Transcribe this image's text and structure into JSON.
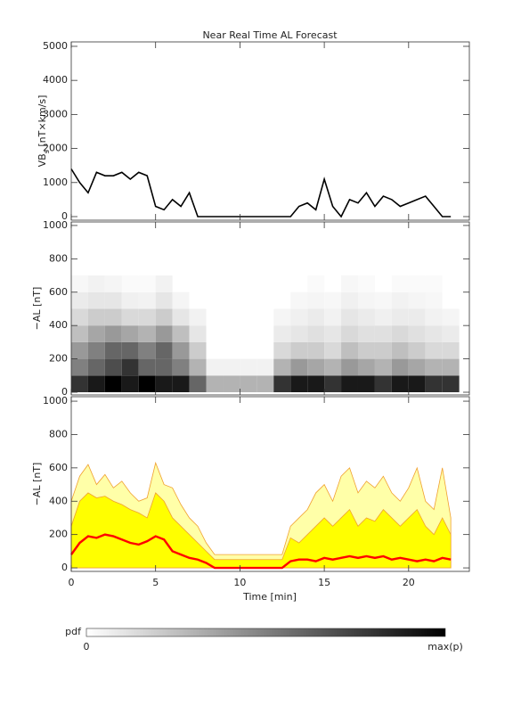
{
  "chart_data": [
    {
      "type": "line",
      "title": "Near Real Time AL Forecast",
      "ylabel": [
        "VB",
        "s",
        " [nT×km/s]"
      ],
      "xlim": [
        0,
        23.6
      ],
      "ylim": [
        -105,
        5130
      ],
      "yticks": [
        0,
        1000,
        2000,
        3000,
        4000,
        5000
      ],
      "x": [
        0,
        0.5,
        1,
        1.5,
        2,
        2.5,
        3,
        3.5,
        4,
        4.5,
        5,
        5.5,
        6,
        6.5,
        7,
        7.5,
        8,
        8.5,
        9,
        9.5,
        10,
        10.5,
        11,
        11.5,
        12,
        12.5,
        13,
        13.5,
        14,
        14.5,
        15,
        15.5,
        16,
        16.5,
        17,
        17.5,
        18,
        18.5,
        19,
        19.5,
        20,
        20.5,
        21,
        21.5,
        22,
        22.5
      ],
      "series": [
        {
          "color": "#000000",
          "values": [
            1400,
            1000,
            700,
            1300,
            1200,
            1200,
            1300,
            1100,
            1300,
            1200,
            300,
            200,
            500,
            300,
            700,
            0,
            0,
            0,
            0,
            0,
            0,
            0,
            0,
            0,
            0,
            0,
            0,
            300,
            400,
            200,
            1100,
            300,
            0,
            500,
            400,
            700,
            300,
            600,
            500,
            300,
            400,
            500,
            600,
            300,
            0,
            0
          ]
        }
      ]
    },
    {
      "type": "heatmap",
      "ylabel": "−AL [nT]",
      "xlim": [
        0,
        23.6
      ],
      "ylim": [
        -16,
        1021
      ],
      "yticks": [
        0,
        200,
        400,
        600,
        800,
        1000
      ],
      "x_bins": [
        0,
        1,
        2,
        3,
        4,
        5,
        6,
        7,
        8,
        9,
        10,
        11,
        12,
        13,
        14,
        15,
        16,
        17,
        18,
        19,
        20,
        21,
        22,
        23
      ],
      "y_bins": [
        0,
        100,
        200,
        300,
        400,
        500,
        600,
        700
      ],
      "values": [
        [
          0.8,
          0.9,
          1,
          0.9,
          1,
          0.9,
          0.9,
          0.6,
          0.3,
          0.3,
          0.3,
          0.3,
          0.8,
          0.9,
          0.9,
          0.8,
          0.9,
          0.9,
          0.8,
          0.9,
          0.9,
          0.8,
          0.8
        ],
        [
          0.5,
          0.6,
          0.7,
          0.8,
          0.6,
          0.6,
          0.5,
          0.3,
          0.05,
          0.05,
          0.05,
          0.05,
          0.3,
          0.4,
          0.35,
          0.3,
          0.4,
          0.35,
          0.3,
          0.4,
          0.35,
          0.3,
          0.3
        ],
        [
          0.4,
          0.5,
          0.6,
          0.6,
          0.5,
          0.6,
          0.4,
          0.2,
          0,
          0,
          0,
          0,
          0.15,
          0.2,
          0.2,
          0.15,
          0.25,
          0.2,
          0.2,
          0.25,
          0.2,
          0.15,
          0.15
        ],
        [
          0.25,
          0.35,
          0.4,
          0.35,
          0.3,
          0.4,
          0.25,
          0.1,
          0,
          0,
          0,
          0,
          0.08,
          0.1,
          0.12,
          0.1,
          0.15,
          0.12,
          0.12,
          0.15,
          0.12,
          0.1,
          0.08
        ],
        [
          0.15,
          0.2,
          0.2,
          0.15,
          0.15,
          0.2,
          0.1,
          0.05,
          0,
          0,
          0,
          0,
          0.04,
          0.06,
          0.08,
          0.05,
          0.1,
          0.08,
          0.06,
          0.08,
          0.08,
          0.05,
          0.04
        ],
        [
          0.08,
          0.1,
          0.1,
          0.06,
          0.05,
          0.1,
          0.04,
          0,
          0,
          0,
          0,
          0,
          0,
          0.03,
          0.04,
          0.03,
          0.06,
          0.04,
          0.03,
          0.05,
          0.04,
          0.03,
          0
        ],
        [
          0.03,
          0.05,
          0.04,
          0.02,
          0.02,
          0.05,
          0,
          0,
          0,
          0,
          0,
          0,
          0,
          0,
          0.02,
          0,
          0.03,
          0.02,
          0,
          0.02,
          0.02,
          0.02,
          0
        ]
      ],
      "colorbar": {
        "label": "pdf",
        "min_label": "0",
        "max_label": "max(p)"
      }
    },
    {
      "type": "area",
      "ylabel": "−AL [nT]",
      "xlabel": "Time [min]",
      "xlim": [
        0,
        23.6
      ],
      "xticks": [
        0,
        5,
        10,
        15,
        20
      ],
      "ylim": [
        -21,
        1027
      ],
      "yticks": [
        0,
        200,
        400,
        600,
        800,
        1000
      ],
      "x": [
        0,
        0.5,
        1,
        1.5,
        2,
        2.5,
        3,
        3.5,
        4,
        4.5,
        5,
        5.5,
        6,
        6.5,
        7,
        7.5,
        8,
        8.5,
        9,
        9.5,
        10,
        10.5,
        11,
        11.5,
        12,
        12.5,
        13,
        13.5,
        14,
        14.5,
        15,
        15.5,
        16,
        16.5,
        17,
        17.5,
        18,
        18.5,
        19,
        19.5,
        20,
        20.5,
        21,
        21.5,
        22,
        22.5
      ],
      "series": [
        {
          "color": "#ffffa8",
          "stroke": "#f0a030",
          "values": [
            400,
            550,
            620,
            500,
            560,
            480,
            520,
            450,
            400,
            420,
            630,
            500,
            480,
            380,
            300,
            250,
            150,
            80,
            80,
            80,
            80,
            80,
            80,
            80,
            80,
            80,
            250,
            300,
            350,
            450,
            500,
            400,
            550,
            600,
            450,
            520,
            480,
            550,
            450,
            400,
            480,
            600,
            400,
            350,
            600,
            300
          ]
        },
        {
          "color": "#ffff00",
          "stroke": "#f0a030",
          "values": [
            250,
            400,
            450,
            420,
            430,
            400,
            380,
            350,
            330,
            300,
            450,
            400,
            300,
            250,
            200,
            150,
            100,
            50,
            50,
            50,
            50,
            50,
            50,
            50,
            50,
            50,
            180,
            150,
            200,
            250,
            300,
            250,
            300,
            350,
            250,
            300,
            280,
            350,
            300,
            250,
            300,
            350,
            250,
            200,
            300,
            200
          ]
        },
        {
          "color": "none",
          "stroke": "#ff0000",
          "values": [
            80,
            150,
            190,
            180,
            200,
            190,
            170,
            150,
            140,
            160,
            190,
            170,
            100,
            80,
            60,
            50,
            30,
            0,
            0,
            0,
            0,
            0,
            0,
            0,
            0,
            0,
            40,
            50,
            50,
            40,
            60,
            50,
            60,
            70,
            60,
            70,
            60,
            70,
            50,
            60,
            50,
            40,
            50,
            40,
            60,
            50
          ]
        }
      ]
    }
  ]
}
